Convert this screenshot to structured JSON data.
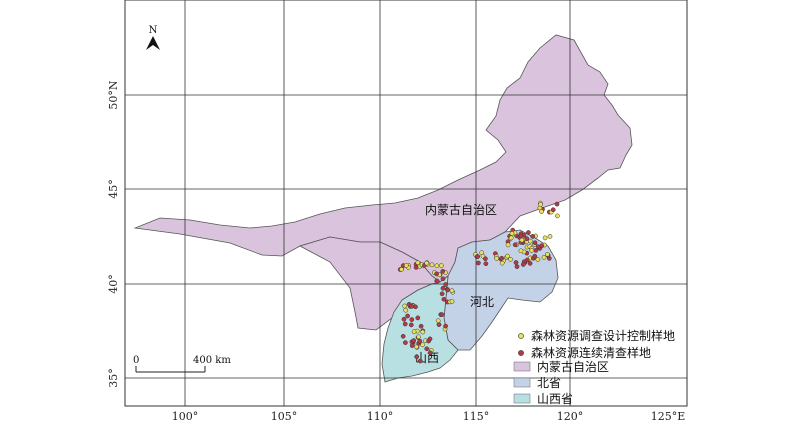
{
  "map": {
    "north_label": "N",
    "lon_labels": [
      "100°",
      "105°",
      "110°",
      "115°",
      "120°",
      "125°E"
    ],
    "lat_labels": [
      "35°",
      "40°",
      "45°",
      "50°N"
    ],
    "regions": {
      "inner_mongolia": "内蒙古自治区",
      "hebei": "河北",
      "shanxi": "山西"
    },
    "colors": {
      "inner_mongolia": "#d9c3dd",
      "hebei": "#c4d2e8",
      "shanxi": "#b8dfe1",
      "survey_plot": "#e8e25a",
      "inventory_plot": "#b23a48"
    },
    "scale_bar": {
      "zero": "0",
      "distance": "400 km"
    },
    "legend": {
      "items": [
        {
          "label": "森林资源调查设计控制样地",
          "kind": "dot",
          "color": "#e8e25a"
        },
        {
          "label": "森林资源连续清查样地",
          "kind": "dot",
          "color": "#b23a48"
        },
        {
          "label": "内蒙古自治区",
          "kind": "rect",
          "color": "#d9c3dd"
        },
        {
          "label": "北省",
          "kind": "rect",
          "color": "#c4d2e8"
        },
        {
          "label": "山西省",
          "kind": "rect",
          "color": "#b8dfe1"
        }
      ]
    }
  }
}
